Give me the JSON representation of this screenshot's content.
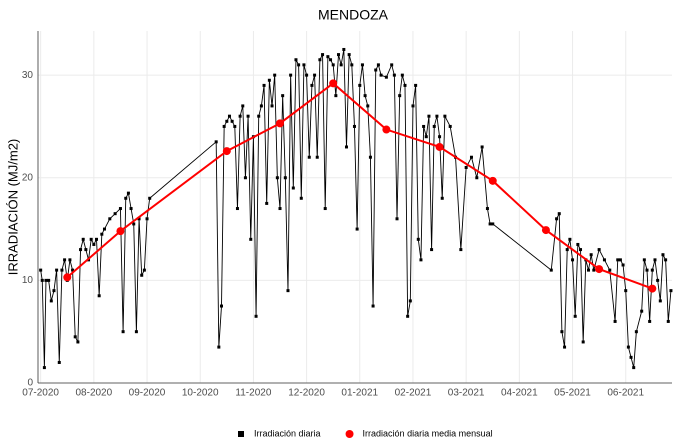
{
  "chart_data": {
    "type": "line",
    "title": "MENDOZA",
    "y_label": "IRRADIACIÓN (MJ/m2)",
    "xlim": [
      -0.05,
      11.87
    ],
    "ylim": [
      0,
      34.3
    ],
    "xticks": [
      {
        "value": 0,
        "label": "07-2020"
      },
      {
        "value": 1,
        "label": "08-2020"
      },
      {
        "value": 2,
        "label": "09-2020"
      },
      {
        "value": 3,
        "label": "10-2020"
      },
      {
        "value": 4,
        "label": "11-2020"
      },
      {
        "value": 5,
        "label": "12-2020"
      },
      {
        "value": 6,
        "label": "01-2021"
      },
      {
        "value": 7,
        "label": "02-2021"
      },
      {
        "value": 8,
        "label": "03-2021"
      },
      {
        "value": 9,
        "label": "04-2021"
      },
      {
        "value": 10,
        "label": "05-2021"
      },
      {
        "value": 11,
        "label": "06-2021"
      }
    ],
    "yticks": [
      0,
      10,
      20,
      30
    ],
    "grid": true,
    "legend": "bottom",
    "series": [
      {
        "name": "Irradiación diaria",
        "color": "#000000",
        "x": [
          0.0,
          0.03,
          0.07,
          0.1,
          0.15,
          0.2,
          0.25,
          0.3,
          0.35,
          0.4,
          0.45,
          0.5,
          0.55,
          0.6,
          0.65,
          0.7,
          0.75,
          0.8,
          0.85,
          0.9,
          0.95,
          1.0,
          1.05,
          1.1,
          1.15,
          1.2,
          1.3,
          1.4,
          1.5,
          1.55,
          1.6,
          1.65,
          1.7,
          1.75,
          1.8,
          1.85,
          1.9,
          1.95,
          2.0,
          2.05,
          3.3,
          3.35,
          3.4,
          3.45,
          3.5,
          3.55,
          3.6,
          3.65,
          3.7,
          3.75,
          3.8,
          3.85,
          3.9,
          3.95,
          4.0,
          4.05,
          4.1,
          4.15,
          4.2,
          4.25,
          4.3,
          4.35,
          4.4,
          4.45,
          4.5,
          4.55,
          4.6,
          4.65,
          4.7,
          4.75,
          4.8,
          4.85,
          4.9,
          4.95,
          5.0,
          5.05,
          5.1,
          5.15,
          5.2,
          5.25,
          5.3,
          5.35,
          5.4,
          5.45,
          5.5,
          5.55,
          5.6,
          5.65,
          5.7,
          5.75,
          5.8,
          5.85,
          5.9,
          5.95,
          6.0,
          6.05,
          6.1,
          6.15,
          6.2,
          6.25,
          6.3,
          6.35,
          6.4,
          6.5,
          6.6,
          6.65,
          6.7,
          6.75,
          6.8,
          6.85,
          6.9,
          6.95,
          7.0,
          7.05,
          7.1,
          7.15,
          7.2,
          7.25,
          7.3,
          7.35,
          7.4,
          7.45,
          7.5,
          7.55,
          7.6,
          7.7,
          7.8,
          7.9,
          8.0,
          8.1,
          8.2,
          8.3,
          8.4,
          8.45,
          8.5,
          9.6,
          9.7,
          9.75,
          9.8,
          9.85,
          9.9,
          9.95,
          10.0,
          10.05,
          10.1,
          10.15,
          10.2,
          10.25,
          10.3,
          10.35,
          10.4,
          10.5,
          10.6,
          10.7,
          10.8,
          10.85,
          10.9,
          10.95,
          11.0,
          11.05,
          11.1,
          11.15,
          11.2,
          11.3,
          11.35,
          11.4,
          11.45,
          11.5,
          11.55,
          11.6,
          11.65,
          11.7,
          11.75,
          11.8,
          11.85
        ],
        "values": [
          11,
          10,
          1.5,
          10,
          10,
          8,
          9,
          11,
          2,
          11,
          12,
          10,
          12,
          11,
          4.5,
          4,
          13,
          14,
          13,
          12,
          14,
          13.5,
          14,
          8.5,
          14.5,
          15,
          16,
          16.5,
          17,
          5,
          18,
          18.5,
          17,
          15.5,
          5,
          16,
          10.5,
          11,
          16,
          18,
          23.5,
          3.5,
          7.5,
          25,
          25.5,
          26,
          25.5,
          25,
          17,
          26,
          27,
          20,
          26,
          14,
          24,
          6.5,
          26,
          27,
          29,
          17.5,
          29.5,
          27,
          30,
          20,
          17,
          28,
          20,
          9,
          30,
          19,
          31.5,
          31,
          18,
          31,
          30,
          22,
          29,
          30,
          22,
          31.5,
          32,
          17,
          31.8,
          31.5,
          31,
          28,
          32,
          31,
          32.5,
          23,
          32,
          31,
          25,
          15,
          29,
          31,
          28,
          27,
          22,
          7.5,
          30.5,
          31,
          30,
          29.8,
          31,
          30,
          16,
          28,
          30,
          29,
          6.5,
          8,
          27,
          29,
          14,
          12,
          25,
          24,
          26,
          13,
          25,
          26,
          24,
          18,
          26,
          25,
          22,
          13,
          21,
          22,
          20,
          23,
          17,
          15.5,
          15.5,
          11,
          16,
          16.5,
          5,
          3.5,
          13,
          14,
          12,
          6.5,
          13.5,
          13,
          4,
          12,
          11,
          12.5,
          11,
          13,
          12,
          11,
          6,
          12,
          12,
          11.5,
          9,
          3.5,
          2.5,
          1.5,
          5,
          7,
          12,
          11,
          6,
          11,
          12,
          10,
          8,
          12.5,
          12,
          6,
          9
        ]
      },
      {
        "name": "Irradiación diaria media mensual",
        "color": "#ff0000",
        "x": [
          0.5,
          1.5,
          3.5,
          4.5,
          5.5,
          6.5,
          7.5,
          8.5,
          9.5,
          10.5,
          11.5
        ],
        "values": [
          10.3,
          14.8,
          22.6,
          25.3,
          29.2,
          24.7,
          23.0,
          19.7,
          14.9,
          11.1,
          9.2
        ]
      }
    ]
  }
}
